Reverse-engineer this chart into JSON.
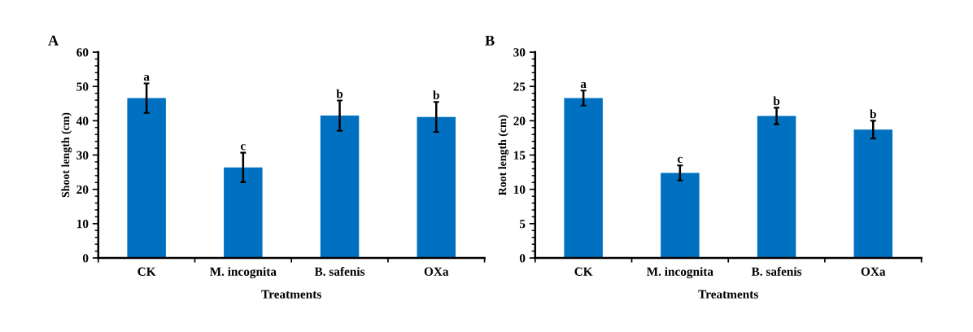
{
  "chart_data": [
    {
      "type": "bar",
      "title": "A",
      "xlabel": "Treatments",
      "ylabel": "Shoot length (cm)",
      "categories": [
        "CK",
        "M. incognita",
        "B. safenis",
        "OXa"
      ],
      "values": [
        46.6,
        26.4,
        41.5,
        41.1
      ],
      "errors": [
        4.3,
        4.3,
        4.4,
        4.4
      ],
      "color": "#0070c0",
      "ylim": [
        0,
        60
      ],
      "yticks": [
        0,
        10,
        20,
        30,
        40,
        50,
        60
      ],
      "grid": false,
      "annotations": [
        {
          "text": "a",
          "x": "CK",
          "y": 50.9
        },
        {
          "text": "c",
          "x": "M. incognita",
          "y": 30.7
        },
        {
          "text": "b",
          "x": "B. safenis",
          "y": 45.9
        },
        {
          "text": "b",
          "x": "OXa",
          "y": 45.5
        }
      ]
    },
    {
      "type": "bar",
      "title": "B",
      "xlabel": "Treatments",
      "ylabel": "Root length (cm)",
      "categories": [
        "CK",
        "M. incognita",
        "B. safenis",
        "OXa"
      ],
      "values": [
        23.3,
        12.4,
        20.7,
        18.7
      ],
      "errors": [
        1.1,
        1.1,
        1.2,
        1.3
      ],
      "color": "#0070c0",
      "ylim": [
        0,
        30
      ],
      "yticks": [
        0,
        5,
        10,
        15,
        20,
        25,
        30
      ],
      "grid": false,
      "annotations": [
        {
          "text": "a",
          "x": "CK",
          "y": 24.4
        },
        {
          "text": "c",
          "x": "M. incognita",
          "y": 13.5
        },
        {
          "text": "b",
          "x": "B. safenis",
          "y": 21.9
        },
        {
          "text": "b",
          "x": "OXa",
          "y": 20.0
        }
      ]
    }
  ]
}
